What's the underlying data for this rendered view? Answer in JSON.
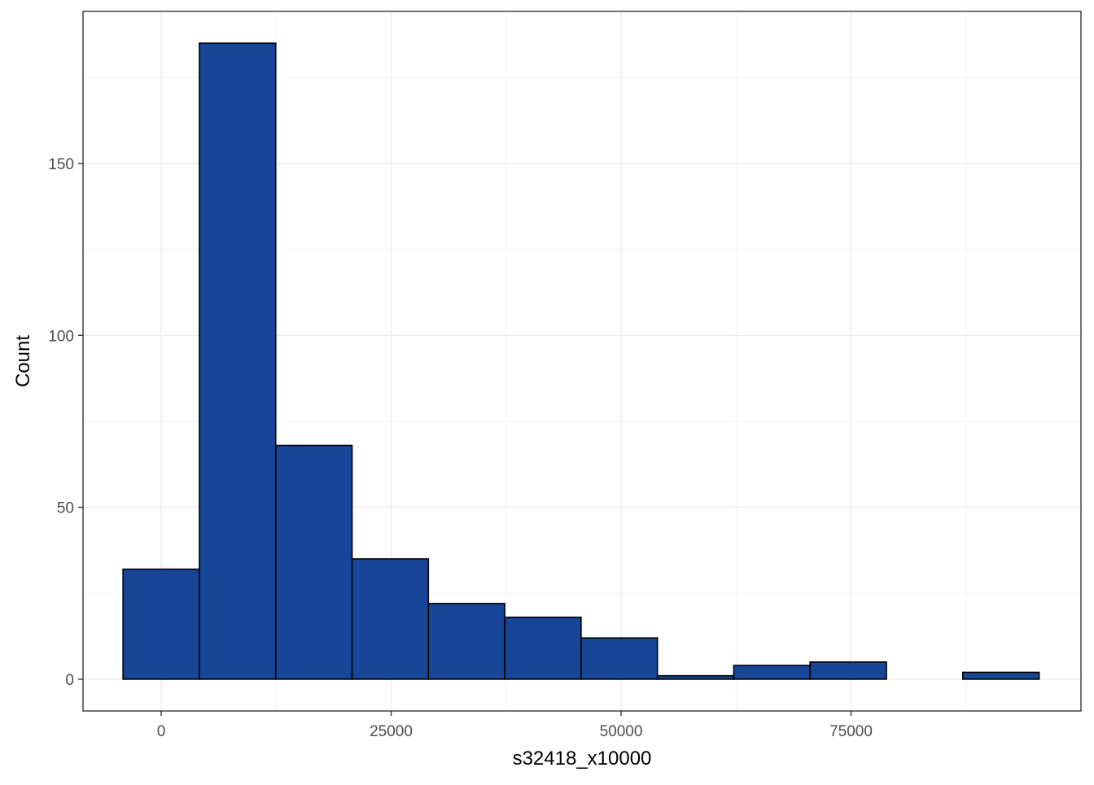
{
  "chart_data": {
    "type": "bar",
    "title": "",
    "xlabel": "s32418_x10000",
    "ylabel": "Count",
    "bin_width": 8300,
    "bins": [
      {
        "start": -4150,
        "end": 4150,
        "count": 32
      },
      {
        "start": 4150,
        "end": 12450,
        "count": 185
      },
      {
        "start": 12450,
        "end": 20750,
        "count": 68
      },
      {
        "start": 20750,
        "end": 29050,
        "count": 35
      },
      {
        "start": 29050,
        "end": 37350,
        "count": 22
      },
      {
        "start": 37350,
        "end": 45650,
        "count": 18
      },
      {
        "start": 45650,
        "end": 53950,
        "count": 12
      },
      {
        "start": 53950,
        "end": 62250,
        "count": 1
      },
      {
        "start": 62250,
        "end": 70550,
        "count": 4
      },
      {
        "start": 70550,
        "end": 78850,
        "count": 5
      },
      {
        "start": 78850,
        "end": 87150,
        "count": 0
      },
      {
        "start": 87150,
        "end": 95450,
        "count": 2
      }
    ],
    "xlim": [
      -8500,
      100000
    ],
    "ylim": [
      -9.25,
      194.25
    ],
    "x_ticks": [
      0,
      25000,
      50000,
      75000
    ],
    "x_tick_labels": [
      "0",
      "25000",
      "50000",
      "75000"
    ],
    "y_ticks": [
      0,
      50,
      100,
      150
    ],
    "y_tick_labels": [
      "0",
      "50",
      "100",
      "150"
    ],
    "x_minor_ticks": [
      12500,
      37500,
      62500,
      87500
    ],
    "y_minor_ticks": [
      25,
      75,
      125,
      175
    ],
    "grid": true,
    "legend": "none",
    "colors": {
      "bar_fill": "#174597",
      "bar_outline": "#000000",
      "panel_border": "#333333"
    }
  }
}
